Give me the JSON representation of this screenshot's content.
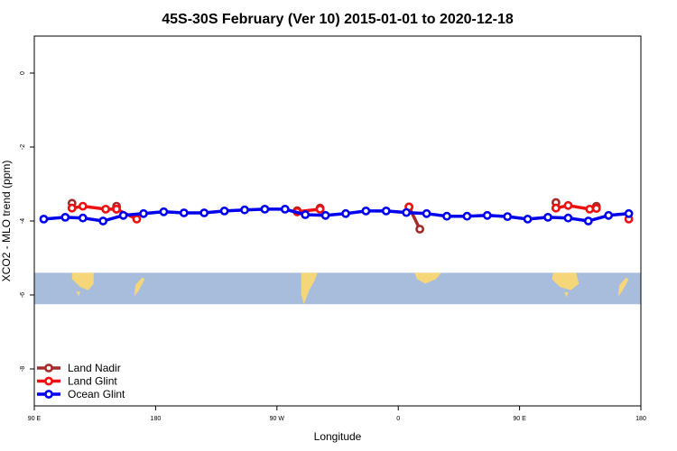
{
  "chart_data": {
    "type": "line",
    "title": "45S-30S February (Ver 10)   2015-01-01 to 2020-12-18",
    "xlabel": "Longitude",
    "ylabel": "XCO2 - MLO trend (ppm)",
    "xlim": [
      90,
      540
    ],
    "ylim": [
      -9,
      1
    ],
    "x_ticks": [
      {
        "value": 90,
        "label": "90 E"
      },
      {
        "value": 180,
        "label": "180"
      },
      {
        "value": 270,
        "label": "90 W"
      },
      {
        "value": 360,
        "label": "0"
      },
      {
        "value": 450,
        "label": "90 E"
      },
      {
        "value": 540,
        "label": "180"
      }
    ],
    "y_ticks": [
      {
        "value": 0,
        "label": "0"
      },
      {
        "value": -2,
        "label": "-2"
      },
      {
        "value": -4,
        "label": "-4"
      },
      {
        "value": -6,
        "label": "-6"
      },
      {
        "value": -8,
        "label": "-8"
      }
    ],
    "map_strip": {
      "ymin": -6.25,
      "ymax": -5.4,
      "ocean_color": "#a8bcdc",
      "land_color": "#f5d77a"
    },
    "legend_position": "bottom-left",
    "series": [
      {
        "name": "Land Nadir",
        "color": "#a52a2a",
        "segments": [
          [
            [
              118,
              -3.52
            ],
            [
              118,
              -3.65
            ]
          ],
          [
            [
              151,
              -3.6
            ],
            [
              151,
              -3.68
            ]
          ],
          [
            [
              285,
              -3.75
            ],
            [
              285,
              -3.72
            ]
          ],
          [
            [
              302,
              -3.65
            ],
            [
              302,
              -3.68
            ]
          ],
          [
            [
              368,
              -3.62
            ],
            [
              376,
              -4.22
            ]
          ],
          [
            [
              477,
              -3.5
            ],
            [
              477,
              -3.65
            ]
          ],
          [
            [
              507,
              -3.6
            ],
            [
              507,
              -3.65
            ]
          ]
        ]
      },
      {
        "name": "Land Glint",
        "color": "#ee1111",
        "segments": [
          [
            [
              118,
              -3.65
            ],
            [
              126,
              -3.6
            ],
            [
              143,
              -3.68
            ],
            [
              151,
              -3.68
            ],
            [
              166,
              -3.95
            ]
          ],
          [
            [
              285,
              -3.75
            ],
            [
              302,
              -3.68
            ]
          ],
          [
            [
              368,
              -3.62
            ]
          ],
          [
            [
              477,
              -3.65
            ],
            [
              486,
              -3.58
            ],
            [
              502,
              -3.68
            ],
            [
              507,
              -3.66
            ]
          ],
          [
            [
              531,
              -3.95
            ]
          ]
        ]
      },
      {
        "name": "Ocean Glint",
        "color": "#0000ee",
        "segments": [
          [
            [
              97,
              -3.95
            ],
            [
              113,
              -3.9
            ],
            [
              126,
              -3.92
            ],
            [
              141,
              -4.0
            ],
            [
              156,
              -3.85
            ],
            [
              171,
              -3.8
            ],
            [
              186,
              -3.75
            ],
            [
              201,
              -3.78
            ],
            [
              216,
              -3.78
            ],
            [
              231,
              -3.73
            ],
            [
              246,
              -3.7
            ],
            [
              261,
              -3.68
            ],
            [
              276,
              -3.68
            ],
            [
              291,
              -3.83
            ],
            [
              306,
              -3.85
            ],
            [
              321,
              -3.8
            ],
            [
              336,
              -3.73
            ],
            [
              351,
              -3.73
            ],
            [
              366,
              -3.77
            ],
            [
              381,
              -3.8
            ],
            [
              396,
              -3.87
            ],
            [
              411,
              -3.87
            ],
            [
              426,
              -3.85
            ],
            [
              441,
              -3.88
            ],
            [
              456,
              -3.95
            ],
            [
              471,
              -3.9
            ],
            [
              486,
              -3.92
            ],
            [
              501,
              -4.0
            ],
            [
              516,
              -3.85
            ],
            [
              531,
              -3.8
            ]
          ]
        ]
      }
    ]
  }
}
